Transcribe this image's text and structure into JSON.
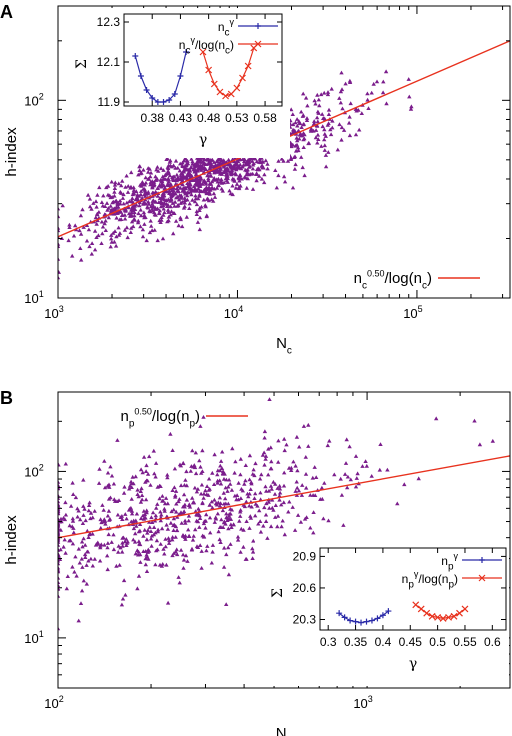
{
  "colors": {
    "scatter": "#7b1d8c",
    "fit": "#e8321e",
    "blue": "#2a2aa8",
    "red": "#e8321e"
  },
  "chart_data": [
    {
      "panel": "A",
      "type": "scatter",
      "xlabel": {
        "main": "N",
        "sub": "c"
      },
      "ylabel": "h-index",
      "x_scale": "log",
      "y_scale": "log",
      "xlim": [
        1000,
        330000
      ],
      "ylim": [
        10,
        300
      ],
      "xticks": [
        {
          "v": 1000,
          "e": "3"
        },
        {
          "v": 10000,
          "e": "4"
        },
        {
          "v": 100000,
          "e": "5"
        }
      ],
      "yticks": [
        {
          "v": 10,
          "e": "1"
        },
        {
          "v": 100,
          "e": "2"
        }
      ],
      "fit": {
        "label": {
          "b1": "n",
          "b1s": "c",
          "sup": "0.50",
          "mid": "/log(n",
          "b2s": "c",
          "end": ")"
        },
        "points": [
          [
            1000,
            20.4
          ],
          [
            330000,
            200
          ]
        ]
      },
      "scatter": {
        "n": 1500,
        "seed": 7,
        "x_range": [
          1000,
          300000
        ],
        "center": 7000,
        "spread": 0.36,
        "noise": 0.085
      },
      "legend_position": "bottom-right",
      "inset": {
        "xlabel": "γ",
        "ylabel": "Σ",
        "xlim": [
          0.33,
          0.61
        ],
        "ylim": [
          11.88,
          12.34
        ],
        "xticks": [
          0.38,
          0.43,
          0.48,
          0.53,
          0.58
        ],
        "yticks": [
          11.9,
          12.1,
          12.3
        ],
        "series": [
          {
            "name": {
              "b": "n",
              "bs": "c",
              "sup": "γ",
              "rest": ""
            },
            "color": "blue",
            "marker": "plus",
            "x": [
              0.35,
              0.36,
              0.37,
              0.38,
              0.39,
              0.4,
              0.41,
              0.42,
              0.43,
              0.44
            ],
            "y": [
              12.13,
              12.03,
              11.96,
              11.92,
              11.9,
              11.9,
              11.91,
              11.94,
              12.03,
              12.15
            ]
          },
          {
            "name": {
              "b": "n",
              "bs": "c",
              "sup": "γ",
              "rest": "/log(n",
              "rs": "c",
              "end": ")"
            },
            "color": "red",
            "marker": "x",
            "x": [
              0.47,
              0.48,
              0.49,
              0.5,
              0.51,
              0.52,
              0.53,
              0.54,
              0.55,
              0.56
            ],
            "y": [
              12.15,
              12.06,
              11.99,
              11.95,
              11.93,
              11.94,
              11.97,
              12.02,
              12.08,
              12.17
            ]
          }
        ]
      }
    },
    {
      "panel": "B",
      "type": "scatter",
      "xlabel": {
        "main": "N",
        "sub": "p"
      },
      "ylabel": "h-index",
      "x_scale": "log",
      "y_scale": "log",
      "xlim": [
        100,
        2900
      ],
      "ylim": [
        5,
        300
      ],
      "xticks": [
        {
          "v": 100,
          "e": "2"
        },
        {
          "v": 1000,
          "e": "3"
        }
      ],
      "yticks": [
        {
          "v": 10,
          "e": "1"
        },
        {
          "v": 100,
          "e": "2"
        }
      ],
      "fit": {
        "label": {
          "b1": "n",
          "b1s": "p",
          "sup": "0.50",
          "mid": "/log(n",
          "b2s": "p",
          "end": ")"
        },
        "points": [
          [
            100,
            40
          ],
          [
            2900,
            124
          ]
        ]
      },
      "scatter": {
        "n": 820,
        "seed": 3,
        "x_range": [
          100,
          2800
        ],
        "center": 250,
        "spread": 0.28,
        "noise": 0.17
      },
      "legend_position": "top-left",
      "inset": {
        "xlabel": "γ",
        "ylabel": "Σ",
        "xlim": [
          0.285,
          0.625
        ],
        "ylim": [
          20.2,
          20.98
        ],
        "xticks": [
          0.3,
          0.35,
          0.4,
          0.45,
          0.5,
          0.55,
          0.6
        ],
        "yticks": [
          20.3,
          20.6,
          20.9
        ],
        "series": [
          {
            "name": {
              "b": "n",
              "bs": "p",
              "sup": "γ",
              "rest": ""
            },
            "color": "blue",
            "marker": "plus",
            "x": [
              0.32,
              0.33,
              0.34,
              0.35,
              0.36,
              0.37,
              0.38,
              0.39,
              0.4,
              0.41
            ],
            "y": [
              20.36,
              20.32,
              20.29,
              20.28,
              20.27,
              20.28,
              20.29,
              20.31,
              20.34,
              20.38
            ]
          },
          {
            "name": {
              "b": "n",
              "bs": "p",
              "sup": "γ",
              "rest": "/log(n",
              "rs": "p",
              "end": ")"
            },
            "color": "red",
            "marker": "x",
            "x": [
              0.46,
              0.47,
              0.48,
              0.49,
              0.5,
              0.51,
              0.52,
              0.53,
              0.54,
              0.55
            ],
            "y": [
              20.44,
              20.4,
              20.36,
              20.33,
              20.32,
              20.31,
              20.32,
              20.33,
              20.36,
              20.4
            ]
          }
        ]
      }
    }
  ]
}
